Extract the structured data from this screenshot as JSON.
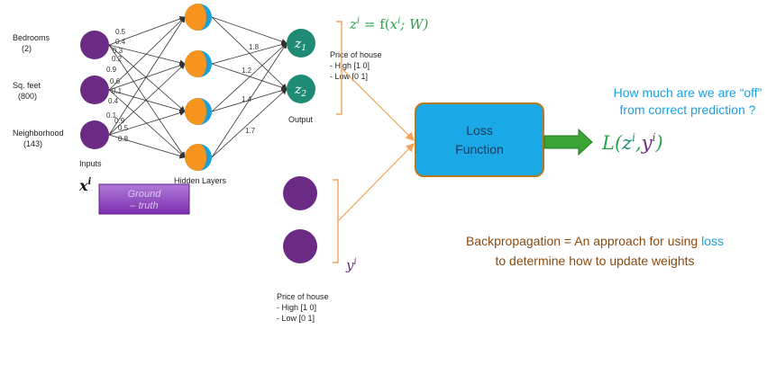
{
  "inputs": [
    {
      "label": "Bedrooms",
      "value": "(2)"
    },
    {
      "label": "Sq. feet",
      "value": "(800)"
    },
    {
      "label": "Neighborhood",
      "value": "(143)"
    }
  ],
  "inputs_caption": "Inputs",
  "input_symbol": "x",
  "input_symbol_sup": "i",
  "hidden_caption": "Hidden Layers",
  "output_caption": "Output",
  "output_nodes": [
    {
      "label": "z",
      "sub": "1"
    },
    {
      "label": "z",
      "sub": "2"
    }
  ],
  "weights_input": [
    "0.5",
    "0.4",
    "0.3",
    "0.2",
    "0.9",
    "0.6",
    "0.1",
    "0.4",
    "0.1",
    "0.9",
    "0.5",
    "0.8"
  ],
  "weights_hidden": [
    "1.8",
    "1.2",
    "1.4",
    "1.7"
  ],
  "output_formula": {
    "lhs": "z",
    "lhs_sup": "i",
    "eq": " = f(",
    "x": "x",
    "x_sup": "i",
    "rest": "; W)"
  },
  "price_output": {
    "title": "Price of house",
    "lines": [
      "- High [1 0]",
      "- Low  [0 1]"
    ]
  },
  "ground_truth_label": [
    "Ground",
    "– truth"
  ],
  "truth_symbol": "y",
  "truth_symbol_sup": "i",
  "price_truth": {
    "title": "Price of house",
    "lines": [
      "- High [1 0]",
      "- Low  [0 1]"
    ]
  },
  "loss_box": {
    "line1": "Loss",
    "line2": "Function"
  },
  "loss_formula": {
    "L": "L(",
    "z": "z",
    "z_sup": "i",
    "comma": ",",
    "y": "y",
    "y_sup": "i",
    "close": ")"
  },
  "question": {
    "line1": "How much are we are “off”",
    "line2": "from correct prediction ?"
  },
  "backprop": {
    "part1": "Backpropagation = An approach for using ",
    "loss_word": "loss",
    "line2": "to determine how to update weights"
  },
  "colors": {
    "purple": "#6b2a83",
    "teal": "#1f8b74",
    "orange": "#f7941d",
    "blue_half": "#1ba1d8",
    "loss_fill": "#1aa9e6",
    "loss_stroke": "#b87a1e",
    "arrow_green": "#3aa435",
    "bracket_orange": "#f4a45a",
    "formula_green": "#2aa24a",
    "question_blue": "#1aa0e0",
    "backprop_brown": "#8a4a0f",
    "truth_box": "#8a3fbf"
  }
}
